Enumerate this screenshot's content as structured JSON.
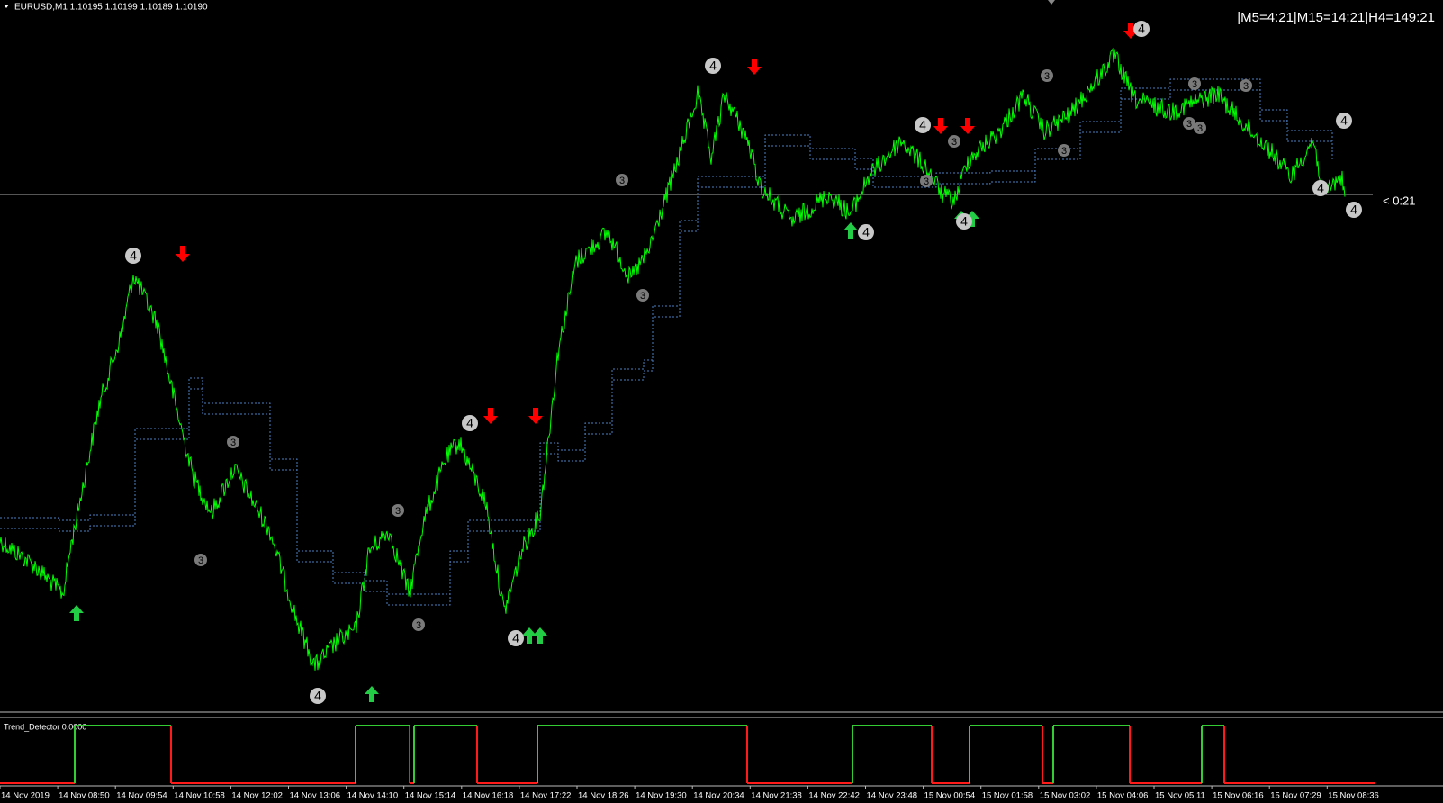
{
  "header": {
    "symbol_info": "EURUSD,M1  1.10195 1.10199 1.10189 1.10190",
    "timer": "|M5=4:21|M15=14:21|H4=149:21",
    "bar_timer": "< 0:21"
  },
  "indicator": {
    "label": "Trend_Detector 0.0000"
  },
  "time_axis": [
    "14 Nov 2019",
    "14 Nov 08:50",
    "14 Nov 09:54",
    "14 Nov 10:58",
    "14 Nov 12:02",
    "14 Nov 13:06",
    "14 Nov 14:10",
    "14 Nov 15:14",
    "14 Nov 16:18",
    "14 Nov 17:22",
    "14 Nov 18:26",
    "14 Nov 19:30",
    "14 Nov 20:34",
    "14 Nov 21:38",
    "14 Nov 22:42",
    "14 Nov 23:48",
    "15 Nov 00:54",
    "15 Nov 01:58",
    "15 Nov 03:02",
    "15 Nov 04:06",
    "15 Nov 05:11",
    "15 Nov 06:16",
    "15 Nov 07:29",
    "15 Nov 08:36"
  ],
  "markers": [
    "4",
    "4",
    "4",
    "4",
    "4",
    "4",
    "4",
    "4",
    "4",
    "4",
    "4",
    "4",
    "3",
    "3",
    "3",
    "3",
    "3",
    "3",
    "3",
    "3",
    "3",
    "3",
    "3",
    "3",
    "3",
    "3"
  ]
}
